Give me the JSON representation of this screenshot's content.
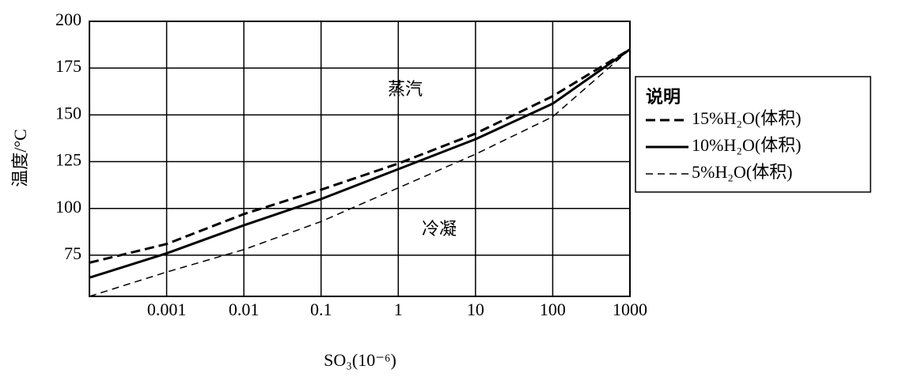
{
  "chart_data": {
    "type": "line",
    "x_label": "SO₃(10⁻⁶)",
    "y_label": "温度/°C",
    "annotations": [
      "蒸汽",
      "冷凝"
    ],
    "legend_title": "说明",
    "legend": "right",
    "x": [
      0.0001,
      0.001,
      0.01,
      0.1,
      1,
      10,
      100,
      1000
    ],
    "xscale": "log",
    "xlim": [
      0.0001,
      1000
    ],
    "xticks": [
      0.001,
      0.01,
      0.1,
      1,
      10,
      100,
      1000
    ],
    "ylim": [
      53,
      200
    ],
    "yticks": [
      75,
      100,
      125,
      150,
      175,
      200
    ],
    "grid": true,
    "series": [
      {
        "name": "15%H₂O(体积)",
        "color": "#000000",
        "style": "dashed-thick",
        "values": [
          71,
          81,
          97,
          110,
          124,
          140,
          160,
          185
        ]
      },
      {
        "name": "10%H₂O(体积)",
        "color": "#000000",
        "style": "solid",
        "values": [
          63,
          76,
          91,
          105,
          121,
          137,
          156,
          185
        ]
      },
      {
        "name": "5%H₂O(体积)",
        "color": "#000000",
        "style": "dashed-thin",
        "values": [
          53,
          66,
          78,
          93,
          111,
          129,
          149,
          185
        ]
      }
    ]
  }
}
